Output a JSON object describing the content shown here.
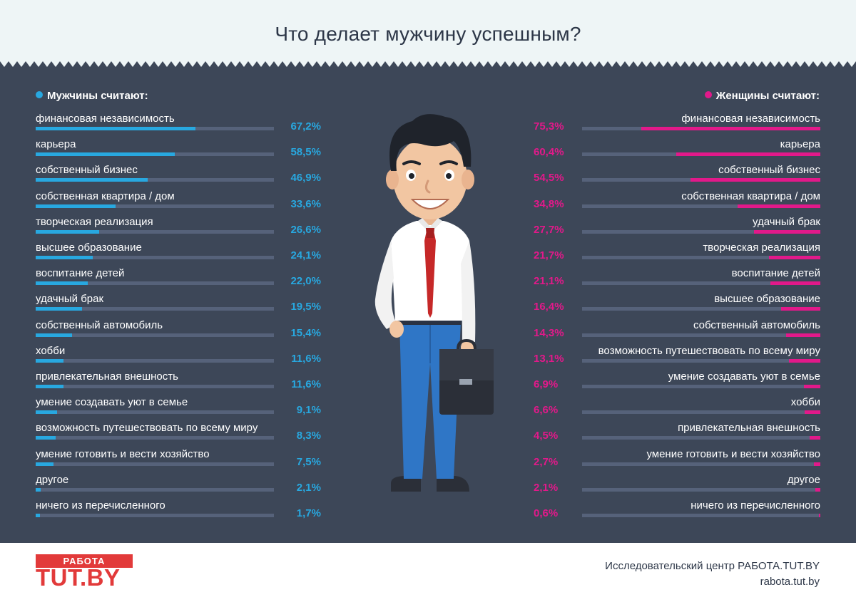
{
  "title": "Что делает мужчину успешным?",
  "colors": {
    "men": "#28a8e0",
    "women": "#e2198a",
    "panel": "#3d4758",
    "brand": "#e23a3a"
  },
  "chart_data": [
    {
      "type": "bar",
      "title": "Мужчины считают:",
      "unit": "%",
      "xlim": [
        0,
        100
      ],
      "categories": [
        "финансовая независимость",
        "карьера",
        "собственный бизнес",
        "собственная квартира / дом",
        "творческая реализация",
        "высшее образование",
        "воспитание детей",
        "удачный брак",
        "собственный автомобиль",
        "хобби",
        "привлекательная внешность",
        "умение создавать уют в семье",
        "возможность путешествовать по всему миру",
        "умение готовить и вести хозяйство",
        "другое",
        "ничего из перечисленного"
      ],
      "values": [
        67.2,
        58.5,
        46.9,
        33.6,
        26.6,
        24.1,
        22.0,
        19.5,
        15.4,
        11.6,
        11.6,
        9.1,
        8.3,
        7.5,
        2.1,
        1.7
      ],
      "value_labels": [
        "67,2%",
        "58,5%",
        "46,9%",
        "33,6%",
        "26,6%",
        "24,1%",
        "22,0%",
        "19,5%",
        "15,4%",
        "11,6%",
        "11,6%",
        "9,1%",
        "8,3%",
        "7,5%",
        "2,1%",
        "1,7%"
      ]
    },
    {
      "type": "bar",
      "title": "Женщины считают:",
      "unit": "%",
      "xlim": [
        0,
        100
      ],
      "categories": [
        "финансовая независимость",
        "карьера",
        "собственный бизнес",
        "собственная квартира / дом",
        "удачный брак",
        "творческая реализация",
        "воспитание детей",
        "высшее образование",
        "собственный автомобиль",
        "возможность путешествовать по всему миру",
        "умение создавать уют в семье",
        "хобби",
        "привлекательная внешность",
        "умение готовить и вести хозяйство",
        "другое",
        "ничего из перечисленного"
      ],
      "values": [
        75.3,
        60.4,
        54.5,
        34.8,
        27.7,
        21.7,
        21.1,
        16.4,
        14.3,
        13.1,
        6.9,
        6.6,
        4.5,
        2.7,
        2.1,
        0.6
      ],
      "value_labels": [
        "75,3%",
        "60,4%",
        "54,5%",
        "34,8%",
        "27,7%",
        "21,7%",
        "21,1%",
        "16,4%",
        "14,3%",
        "13,1%",
        "6,9%",
        "6,6%",
        "4,5%",
        "2,7%",
        "2,1%",
        "0,6%"
      ]
    }
  ],
  "footer": {
    "logo_top": "РАБОТА",
    "logo_main": "TUT.BY",
    "source": "Исследовательский центр РАБОТА.TUT.BY",
    "site": "rabota.tut.by"
  }
}
